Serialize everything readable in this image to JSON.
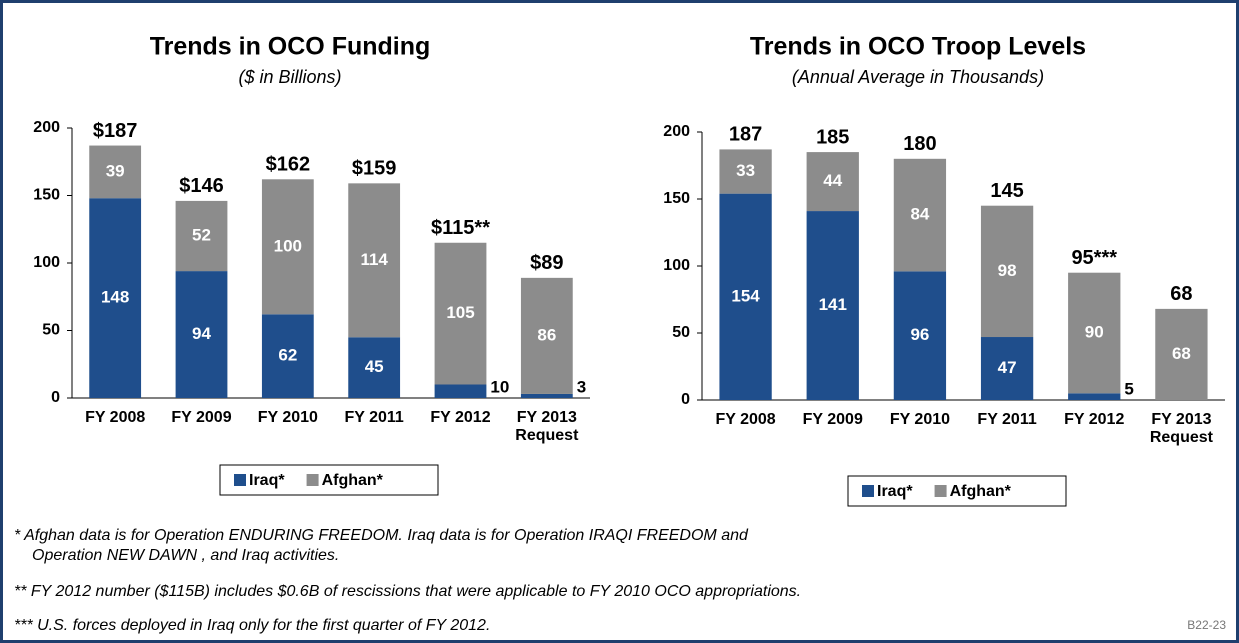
{
  "charts": [
    {
      "chart_data": {
        "type": "bar",
        "stacked": true,
        "title": "Trends in OCO Funding",
        "subtitle": "($ in Billions)",
        "categories": [
          "FY 2008",
          "FY 2009",
          "FY 2010",
          "FY 2011",
          "FY 2012",
          "FY 2013\nRequest"
        ],
        "series": [
          {
            "name": "Iraq*",
            "color": "#1f4e8c",
            "values": [
              148,
              94,
              62,
              45,
              10,
              3
            ]
          },
          {
            "name": "Afghan*",
            "color": "#8c8c8c",
            "values": [
              39,
              52,
              100,
              114,
              105,
              86
            ]
          }
        ],
        "total_labels": [
          "$187",
          "$146",
          "$162",
          "$159",
          "$115**",
          "$89"
        ],
        "ylim": [
          0,
          200
        ],
        "yticks": [
          0,
          50,
          100,
          150,
          200
        ],
        "grid": false,
        "legend": "bottom"
      }
    },
    {
      "chart_data": {
        "type": "bar",
        "stacked": true,
        "title": "Trends in OCO Troop Levels",
        "subtitle": "(Annual Average in Thousands)",
        "categories": [
          "FY 2008",
          "FY 2009",
          "FY 2010",
          "FY 2011",
          "FY 2012",
          "FY 2013\nRequest"
        ],
        "series": [
          {
            "name": "Iraq*",
            "color": "#1f4e8c",
            "values": [
              154,
              141,
              96,
              47,
              5,
              null
            ]
          },
          {
            "name": "Afghan*",
            "color": "#8c8c8c",
            "values": [
              33,
              44,
              84,
              98,
              90,
              68
            ]
          }
        ],
        "total_labels": [
          "187",
          "185",
          "180",
          "145",
          "95***",
          "68"
        ],
        "ylim": [
          0,
          200
        ],
        "yticks": [
          0,
          50,
          100,
          150,
          200
        ],
        "grid": false,
        "legend": "bottom"
      }
    }
  ],
  "notes": [
    "* Afghan data is for Operation ENDURING FREEDOM.  Iraq data is for Operation IRAQI FREEDOM and",
    "Operation NEW DAWN , and Iraq activities.",
    "** FY 2012 number  ($115B) includes $0.6B of rescissions that were applicable to FY 2010 OCO appropriations.",
    "*** U.S. forces deployed in Iraq only for the first quarter of FY 2012."
  ],
  "code": "B22-23"
}
